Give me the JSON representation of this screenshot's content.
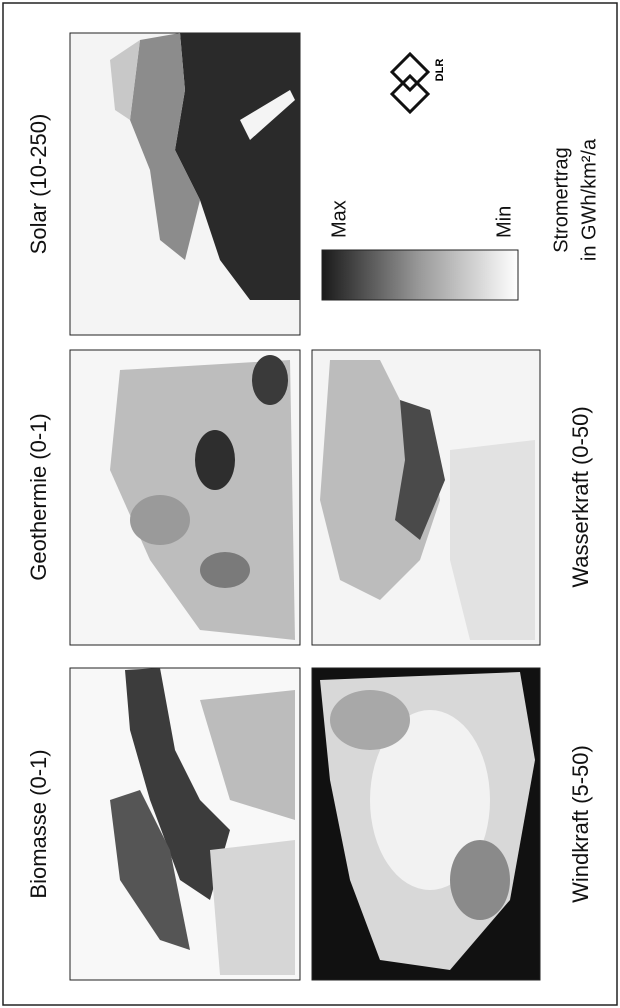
{
  "panels": [
    {
      "title": "Solar (10-250)"
    },
    {
      "title": "Geothermie (0-1)"
    },
    {
      "title": "Biomasse (0-1)"
    },
    {
      "title": "Wasserkraft (0-50)"
    },
    {
      "title": "Windkraft (5-50)"
    }
  ],
  "legend": {
    "max": "Max",
    "min": "Min",
    "title": "Stromertrag",
    "unit": "in GWh/km²/a"
  },
  "logo": "DLR"
}
